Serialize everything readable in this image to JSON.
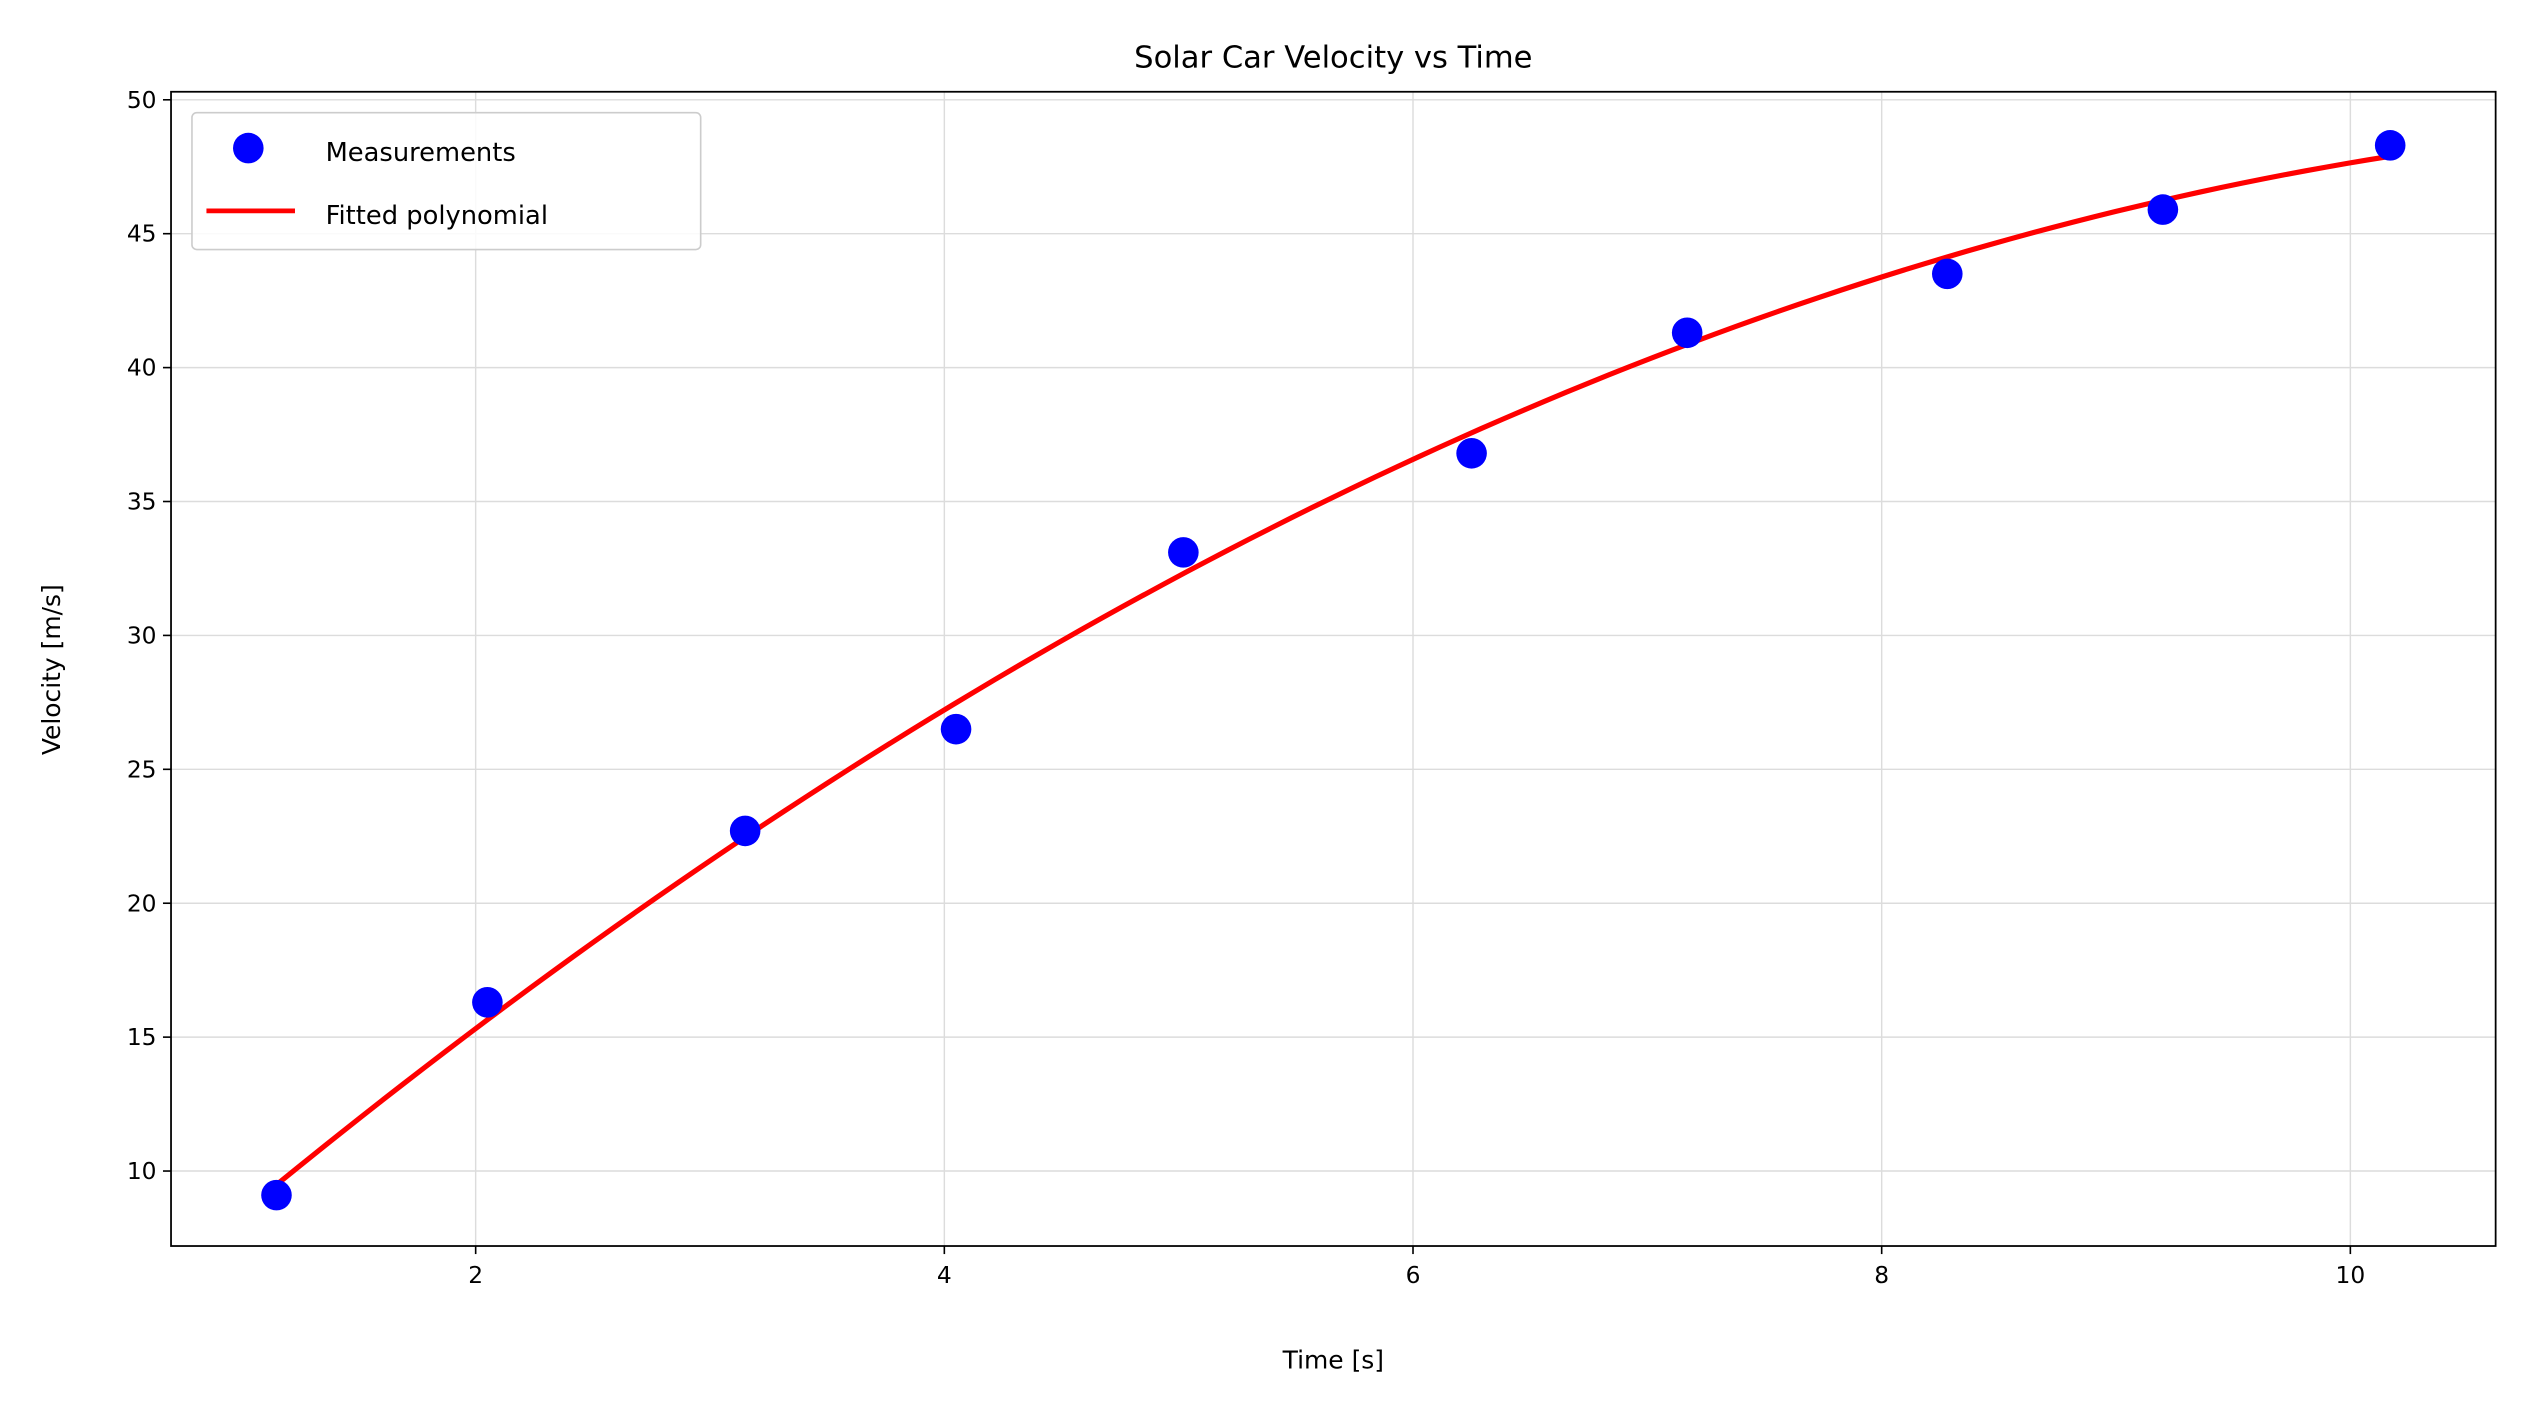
{
  "chart_data": {
    "type": "line",
    "title": "Solar Car Velocity vs Time",
    "xlabel": "Time [s]",
    "ylabel": "Velocity [m/s]",
    "xlim": [
      0.7,
      10.62
    ],
    "ylim": [
      7.2,
      50.3
    ],
    "xticks": [
      2,
      4,
      6,
      8,
      10
    ],
    "yticks": [
      10,
      15,
      20,
      25,
      30,
      35,
      40,
      45,
      50
    ],
    "grid": true,
    "legend_position": "top-left",
    "series": [
      {
        "name": "Measurements",
        "kind": "scatter",
        "color": "#0000ff",
        "x": [
          1.15,
          2.05,
          3.15,
          4.05,
          5.02,
          6.25,
          7.17,
          8.28,
          9.2,
          10.17
        ],
        "y": [
          9.1,
          16.3,
          22.7,
          26.5,
          33.1,
          36.8,
          41.3,
          43.5,
          45.9,
          48.3
        ]
      },
      {
        "name": "Fitted polynomial",
        "kind": "line",
        "color": "#ff0000",
        "x": [
          1.15,
          2.0,
          3.0,
          4.0,
          5.0,
          6.0,
          7.0,
          8.0,
          9.0,
          10.17
        ],
        "y": [
          9.5,
          15.3,
          21.6,
          27.2,
          32.2,
          36.6,
          40.3,
          43.4,
          45.8,
          47.9
        ]
      }
    ]
  }
}
